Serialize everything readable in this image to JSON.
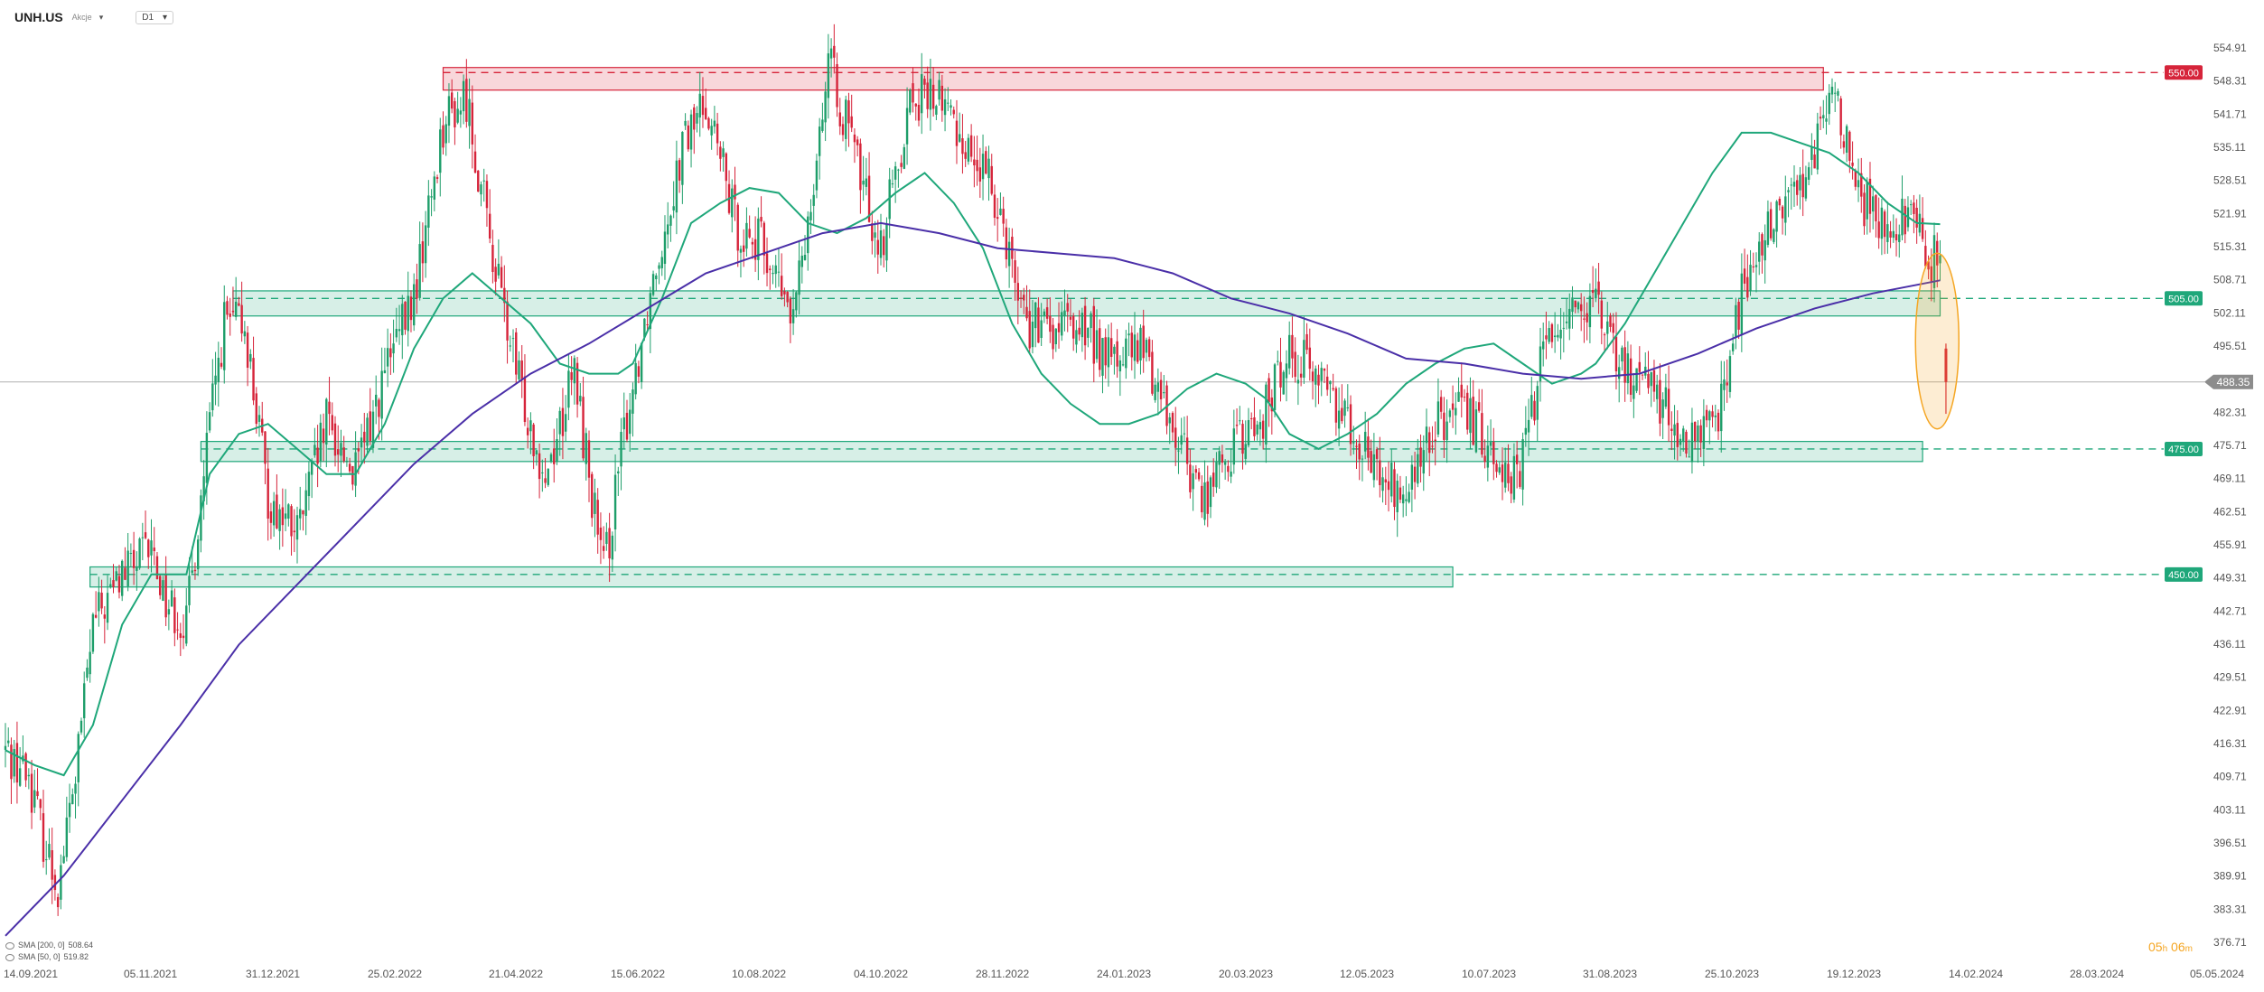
{
  "header": {
    "symbol": "UNH.US",
    "symbol_sub": "Akcje",
    "interval": "D1",
    "caret": "▾"
  },
  "legend": [
    {
      "label": "SMA [200, 0]",
      "value": "508.64",
      "color": "#4a2fa8"
    },
    {
      "label": "SMA [50, 0]",
      "value": "519.82",
      "color": "#1fa77a"
    }
  ],
  "timer": {
    "hours": "05",
    "h": "h",
    "minutes": "06",
    "m": "m"
  },
  "colors": {
    "up": "#1e9e6a",
    "down": "#d6243a",
    "sma200": "#4a2fa8",
    "sma50": "#1fa77a",
    "resistance": "#d6243a",
    "support": "#1fa77a",
    "current": "#8c8c8c",
    "highlight": "#f5a623"
  },
  "chart_data": {
    "type": "candlestick",
    "y_ticks": [
      "554.91",
      "548.31",
      "541.71",
      "535.11",
      "528.51",
      "521.91",
      "515.31",
      "508.71",
      "502.11",
      "495.51",
      "488.91",
      "482.31",
      "475.71",
      "469.11",
      "462.51",
      "455.91",
      "449.31",
      "442.71",
      "436.11",
      "429.51",
      "422.91",
      "416.31",
      "409.71",
      "403.11",
      "396.51",
      "389.91",
      "383.31",
      "376.71"
    ],
    "ylim": [
      376.71,
      554.91
    ],
    "x_ticks": [
      "14.09.2021",
      "05.11.2021",
      "31.12.2021",
      "25.02.2022",
      "21.04.2022",
      "15.06.2022",
      "10.08.2022",
      "04.10.2022",
      "28.11.2022",
      "24.01.2023",
      "20.03.2023",
      "12.05.2023",
      "10.07.2023",
      "31.08.2023",
      "25.10.2023",
      "19.12.2023",
      "14.02.2024",
      "28.03.2024",
      "05.05.2024"
    ],
    "levels": [
      {
        "value": 550.0,
        "label": "550.00",
        "kind": "resistance"
      },
      {
        "value": 505.0,
        "label": "505.00",
        "kind": "support"
      },
      {
        "value": 475.0,
        "label": "475.00",
        "kind": "support"
      },
      {
        "value": 450.0,
        "label": "450.00",
        "kind": "support"
      }
    ],
    "zones": [
      {
        "kind": "resistance",
        "from": 546.5,
        "to": 551.0,
        "start_bar": 150,
        "end_bar": 623
      },
      {
        "kind": "support",
        "from": 501.5,
        "to": 506.5,
        "start_bar": 78,
        "end_bar": 663
      },
      {
        "kind": "support",
        "from": 472.5,
        "to": 476.5,
        "start_bar": 67,
        "end_bar": 657
      },
      {
        "kind": "support",
        "from": 447.5,
        "to": 451.5,
        "start_bar": 29,
        "end_bar": 496
      }
    ],
    "current": {
      "value": 488.35,
      "label": "488.35"
    },
    "bars_count": 700,
    "close_path": [
      [
        0,
        415
      ],
      [
        8,
        410
      ],
      [
        14,
        395
      ],
      [
        18,
        388
      ],
      [
        24,
        410
      ],
      [
        30,
        440
      ],
      [
        40,
        450
      ],
      [
        50,
        455
      ],
      [
        55,
        445
      ],
      [
        62,
        440
      ],
      [
        70,
        480
      ],
      [
        75,
        500
      ],
      [
        82,
        500
      ],
      [
        90,
        465
      ],
      [
        100,
        458
      ],
      [
        110,
        480
      ],
      [
        120,
        470
      ],
      [
        130,
        490
      ],
      [
        140,
        505
      ],
      [
        150,
        540
      ],
      [
        158,
        545
      ],
      [
        165,
        520
      ],
      [
        175,
        490
      ],
      [
        185,
        470
      ],
      [
        195,
        490
      ],
      [
        205,
        450
      ],
      [
        212,
        478
      ],
      [
        222,
        510
      ],
      [
        232,
        535
      ],
      [
        240,
        545
      ],
      [
        250,
        520
      ],
      [
        260,
        515
      ],
      [
        270,
        500
      ],
      [
        282,
        552
      ],
      [
        288,
        540
      ],
      [
        300,
        515
      ],
      [
        310,
        545
      ],
      [
        320,
        545
      ],
      [
        330,
        535
      ],
      [
        340,
        525
      ],
      [
        350,
        500
      ],
      [
        358,
        498
      ],
      [
        368,
        500
      ],
      [
        378,
        493
      ],
      [
        390,
        495
      ],
      [
        400,
        480
      ],
      [
        410,
        465
      ],
      [
        420,
        475
      ],
      [
        430,
        480
      ],
      [
        440,
        495
      ],
      [
        450,
        490
      ],
      [
        462,
        480
      ],
      [
        470,
        470
      ],
      [
        480,
        465
      ],
      [
        490,
        480
      ],
      [
        500,
        482
      ],
      [
        510,
        475
      ],
      [
        518,
        468
      ],
      [
        528,
        497
      ],
      [
        538,
        505
      ],
      [
        545,
        502
      ],
      [
        555,
        490
      ],
      [
        563,
        490
      ],
      [
        575,
        475
      ],
      [
        585,
        478
      ],
      [
        595,
        505
      ],
      [
        605,
        520
      ],
      [
        612,
        525
      ],
      [
        620,
        535
      ],
      [
        628,
        545
      ],
      [
        635,
        525
      ],
      [
        645,
        520
      ],
      [
        652,
        522
      ],
      [
        660,
        513
      ],
      [
        663,
        513
      ]
    ],
    "sma50": [
      [
        0,
        415
      ],
      [
        10,
        412
      ],
      [
        20,
        410
      ],
      [
        30,
        420
      ],
      [
        40,
        440
      ],
      [
        50,
        450
      ],
      [
        55,
        450
      ],
      [
        62,
        450
      ],
      [
        70,
        470
      ],
      [
        80,
        478
      ],
      [
        90,
        480
      ],
      [
        100,
        475
      ],
      [
        110,
        470
      ],
      [
        120,
        470
      ],
      [
        130,
        480
      ],
      [
        140,
        495
      ],
      [
        150,
        505
      ],
      [
        160,
        510
      ],
      [
        170,
        505
      ],
      [
        180,
        500
      ],
      [
        190,
        492
      ],
      [
        200,
        490
      ],
      [
        210,
        490
      ],
      [
        215,
        492
      ],
      [
        225,
        505
      ],
      [
        235,
        520
      ],
      [
        245,
        524
      ],
      [
        255,
        527
      ],
      [
        265,
        526
      ],
      [
        275,
        520
      ],
      [
        285,
        518
      ],
      [
        295,
        521
      ],
      [
        305,
        526
      ],
      [
        315,
        530
      ],
      [
        325,
        524
      ],
      [
        335,
        515
      ],
      [
        345,
        500
      ],
      [
        355,
        490
      ],
      [
        365,
        484
      ],
      [
        375,
        480
      ],
      [
        385,
        480
      ],
      [
        395,
        482
      ],
      [
        405,
        487
      ],
      [
        415,
        490
      ],
      [
        425,
        488
      ],
      [
        432,
        485
      ],
      [
        440,
        478
      ],
      [
        450,
        475
      ],
      [
        460,
        478
      ],
      [
        470,
        482
      ],
      [
        480,
        488
      ],
      [
        490,
        492
      ],
      [
        500,
        495
      ],
      [
        510,
        496
      ],
      [
        520,
        492
      ],
      [
        530,
        488
      ],
      [
        540,
        490
      ],
      [
        545,
        492
      ],
      [
        555,
        500
      ],
      [
        565,
        510
      ],
      [
        575,
        520
      ],
      [
        585,
        530
      ],
      [
        595,
        538
      ],
      [
        605,
        538
      ],
      [
        615,
        536
      ],
      [
        625,
        534
      ],
      [
        635,
        530
      ],
      [
        645,
        524
      ],
      [
        655,
        520
      ],
      [
        663,
        519.8
      ]
    ],
    "sma200": [
      [
        0,
        378
      ],
      [
        20,
        390
      ],
      [
        40,
        405
      ],
      [
        60,
        420
      ],
      [
        80,
        436
      ],
      [
        100,
        448
      ],
      [
        120,
        460
      ],
      [
        140,
        472
      ],
      [
        160,
        482
      ],
      [
        180,
        490
      ],
      [
        200,
        496
      ],
      [
        220,
        503
      ],
      [
        240,
        510
      ],
      [
        260,
        514
      ],
      [
        280,
        518
      ],
      [
        300,
        520
      ],
      [
        320,
        518
      ],
      [
        340,
        515
      ],
      [
        360,
        514
      ],
      [
        380,
        513
      ],
      [
        400,
        510
      ],
      [
        420,
        505
      ],
      [
        440,
        502
      ],
      [
        460,
        498
      ],
      [
        480,
        493
      ],
      [
        500,
        492
      ],
      [
        520,
        490
      ],
      [
        540,
        489
      ],
      [
        560,
        490
      ],
      [
        580,
        494
      ],
      [
        600,
        499
      ],
      [
        620,
        503
      ],
      [
        640,
        506
      ],
      [
        663,
        508.6
      ]
    ],
    "annotations": [
      {
        "kind": "ellipse",
        "bar": 662,
        "from": 479,
        "to": 514
      }
    ]
  }
}
